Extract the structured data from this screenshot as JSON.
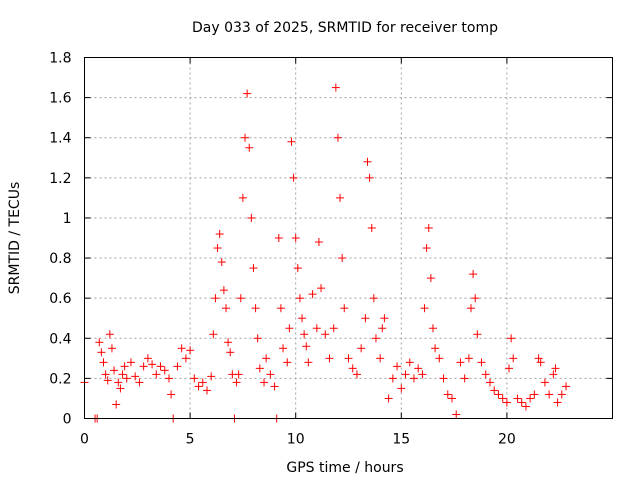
{
  "chart_data": {
    "type": "scatter",
    "title": "Day 033 of 2025, SRMTID for receiver tomp",
    "xlabel": "GPS time / hours",
    "ylabel": "SRMTID / TECUs",
    "xlim": [
      0,
      25
    ],
    "ylim": [
      0,
      1.8
    ],
    "xticks": [
      0,
      5,
      10,
      15,
      20
    ],
    "yticks": [
      0,
      0.2,
      0.4,
      0.6,
      0.8,
      1,
      1.2,
      1.4,
      1.6,
      1.8
    ],
    "xtick_labels": [
      "0",
      "5",
      "10",
      "15",
      "20"
    ],
    "ytick_labels": [
      "0",
      "0.2",
      "0.4",
      "0.6",
      "0.8",
      "1",
      "1.2",
      "1.4",
      "1.6",
      "1.8"
    ],
    "grid": true,
    "marker": "+",
    "color": "#ff0000",
    "series": [
      {
        "name": "SRMTID",
        "points": [
          [
            0.0,
            0.18
          ],
          [
            0.5,
            0.0
          ],
          [
            0.6,
            0.0
          ],
          [
            0.7,
            0.38
          ],
          [
            0.8,
            0.33
          ],
          [
            0.9,
            0.28
          ],
          [
            1.0,
            0.22
          ],
          [
            1.1,
            0.19
          ],
          [
            1.2,
            0.42
          ],
          [
            1.3,
            0.35
          ],
          [
            1.4,
            0.24
          ],
          [
            1.5,
            0.07
          ],
          [
            1.6,
            0.18
          ],
          [
            1.7,
            0.15
          ],
          [
            1.8,
            0.22
          ],
          [
            1.9,
            0.26
          ],
          [
            2.0,
            0.2
          ],
          [
            2.2,
            0.28
          ],
          [
            2.4,
            0.21
          ],
          [
            2.6,
            0.18
          ],
          [
            2.8,
            0.26
          ],
          [
            3.0,
            0.3
          ],
          [
            3.2,
            0.27
          ],
          [
            3.4,
            0.22
          ],
          [
            3.6,
            0.26
          ],
          [
            3.8,
            0.24
          ],
          [
            4.0,
            0.2
          ],
          [
            4.1,
            0.12
          ],
          [
            4.2,
            0.0
          ],
          [
            4.4,
            0.26
          ],
          [
            4.6,
            0.35
          ],
          [
            4.8,
            0.3
          ],
          [
            5.0,
            0.34
          ],
          [
            5.2,
            0.2
          ],
          [
            5.4,
            0.16
          ],
          [
            5.6,
            0.18
          ],
          [
            5.8,
            0.14
          ],
          [
            6.0,
            0.21
          ],
          [
            6.1,
            0.42
          ],
          [
            6.2,
            0.6
          ],
          [
            6.3,
            0.85
          ],
          [
            6.4,
            0.92
          ],
          [
            6.5,
            0.78
          ],
          [
            6.6,
            0.64
          ],
          [
            6.7,
            0.55
          ],
          [
            6.8,
            0.38
          ],
          [
            6.9,
            0.33
          ],
          [
            7.0,
            0.22
          ],
          [
            7.1,
            0.0
          ],
          [
            7.2,
            0.18
          ],
          [
            7.3,
            0.22
          ],
          [
            7.4,
            0.6
          ],
          [
            7.5,
            1.1
          ],
          [
            7.6,
            1.4
          ],
          [
            7.7,
            1.62
          ],
          [
            7.8,
            1.35
          ],
          [
            7.9,
            1.0
          ],
          [
            8.0,
            0.75
          ],
          [
            8.1,
            0.55
          ],
          [
            8.2,
            0.4
          ],
          [
            8.3,
            0.25
          ],
          [
            8.5,
            0.18
          ],
          [
            8.6,
            0.3
          ],
          [
            8.8,
            0.22
          ],
          [
            9.0,
            0.16
          ],
          [
            9.1,
            0.0
          ],
          [
            9.2,
            0.9
          ],
          [
            9.3,
            0.55
          ],
          [
            9.4,
            0.35
          ],
          [
            9.6,
            0.28
          ],
          [
            9.7,
            0.45
          ],
          [
            9.8,
            1.38
          ],
          [
            9.9,
            1.2
          ],
          [
            10.0,
            0.9
          ],
          [
            10.1,
            0.75
          ],
          [
            10.2,
            0.6
          ],
          [
            10.3,
            0.5
          ],
          [
            10.4,
            0.42
          ],
          [
            10.5,
            0.36
          ],
          [
            10.6,
            0.28
          ],
          [
            10.8,
            0.62
          ],
          [
            11.0,
            0.45
          ],
          [
            11.1,
            0.88
          ],
          [
            11.2,
            0.65
          ],
          [
            11.4,
            0.42
          ],
          [
            11.6,
            0.3
          ],
          [
            11.8,
            0.45
          ],
          [
            11.9,
            1.65
          ],
          [
            12.0,
            1.4
          ],
          [
            12.1,
            1.1
          ],
          [
            12.2,
            0.8
          ],
          [
            12.3,
            0.55
          ],
          [
            12.5,
            0.3
          ],
          [
            12.7,
            0.25
          ],
          [
            12.9,
            0.22
          ],
          [
            13.1,
            0.35
          ],
          [
            13.3,
            0.5
          ],
          [
            13.4,
            1.28
          ],
          [
            13.5,
            1.2
          ],
          [
            13.6,
            0.95
          ],
          [
            13.7,
            0.6
          ],
          [
            13.8,
            0.4
          ],
          [
            14.0,
            0.3
          ],
          [
            14.1,
            0.45
          ],
          [
            14.2,
            0.5
          ],
          [
            14.4,
            0.1
          ],
          [
            14.6,
            0.2
          ],
          [
            14.8,
            0.26
          ],
          [
            15.0,
            0.15
          ],
          [
            15.2,
            0.22
          ],
          [
            15.4,
            0.28
          ],
          [
            15.6,
            0.2
          ],
          [
            15.8,
            0.25
          ],
          [
            16.0,
            0.22
          ],
          [
            16.1,
            0.55
          ],
          [
            16.2,
            0.85
          ],
          [
            16.3,
            0.95
          ],
          [
            16.4,
            0.7
          ],
          [
            16.5,
            0.45
          ],
          [
            16.6,
            0.35
          ],
          [
            16.8,
            0.3
          ],
          [
            17.0,
            0.2
          ],
          [
            17.2,
            0.12
          ],
          [
            17.4,
            0.1
          ],
          [
            17.6,
            0.02
          ],
          [
            17.8,
            0.28
          ],
          [
            18.0,
            0.2
          ],
          [
            18.2,
            0.3
          ],
          [
            18.3,
            0.55
          ],
          [
            18.4,
            0.72
          ],
          [
            18.5,
            0.6
          ],
          [
            18.6,
            0.42
          ],
          [
            18.8,
            0.28
          ],
          [
            19.0,
            0.22
          ],
          [
            19.2,
            0.18
          ],
          [
            19.4,
            0.14
          ],
          [
            19.6,
            0.12
          ],
          [
            19.8,
            0.1
          ],
          [
            20.0,
            0.08
          ],
          [
            20.1,
            0.25
          ],
          [
            20.2,
            0.4
          ],
          [
            20.3,
            0.3
          ],
          [
            20.5,
            0.1
          ],
          [
            20.7,
            0.08
          ],
          [
            20.9,
            0.06
          ],
          [
            21.1,
            0.1
          ],
          [
            21.3,
            0.12
          ],
          [
            21.5,
            0.3
          ],
          [
            21.6,
            0.28
          ],
          [
            21.8,
            0.18
          ],
          [
            22.0,
            0.12
          ],
          [
            22.2,
            0.22
          ],
          [
            22.3,
            0.25
          ],
          [
            22.4,
            0.08
          ],
          [
            22.6,
            0.12
          ],
          [
            22.8,
            0.16
          ]
        ]
      }
    ]
  }
}
